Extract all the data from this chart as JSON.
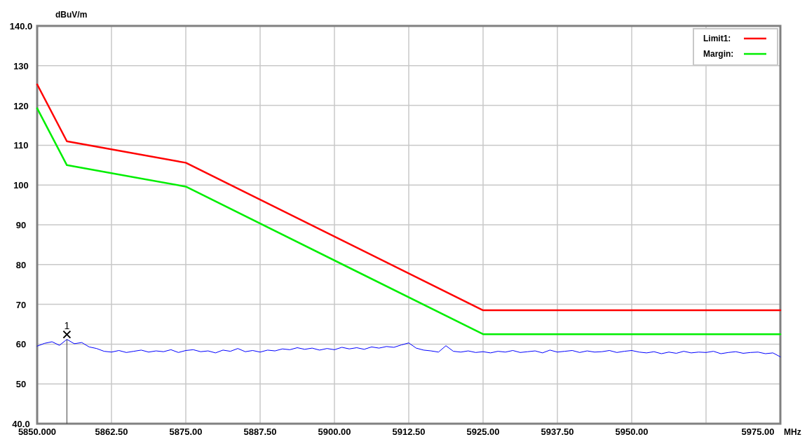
{
  "chart_data": {
    "type": "line",
    "xlabel": "MHz",
    "ylabel": "dBuV/m",
    "xlim": [
      5850,
      5975
    ],
    "xticks": [
      {
        "value": 5850,
        "label": "5850.000"
      },
      {
        "value": 5862.5,
        "label": "5862.50"
      },
      {
        "value": 5875,
        "label": "5875.00"
      },
      {
        "value": 5887.5,
        "label": "5887.50"
      },
      {
        "value": 5900,
        "label": "5900.00"
      },
      {
        "value": 5912.5,
        "label": "5912.50"
      },
      {
        "value": 5925,
        "label": "5925.00"
      },
      {
        "value": 5937.5,
        "label": "5937.50"
      },
      {
        "value": 5950,
        "label": "5950.00"
      },
      {
        "value": 5962.5,
        "label": null
      },
      {
        "value": 5975,
        "label": "5975.00"
      }
    ],
    "ylim": [
      40,
      140
    ],
    "yticks": [
      {
        "value": 40,
        "label": "40.0"
      },
      50,
      60,
      70,
      80,
      90,
      100,
      110,
      120,
      130,
      {
        "value": 140,
        "label": "140.0"
      }
    ],
    "grid": true,
    "legend": "top right",
    "marker": "none",
    "line_style": "solid",
    "series": [
      {
        "name": "Limit1:",
        "color": "#ff0000",
        "x": [
          5850,
          5855,
          5875,
          5925,
          5975
        ],
        "values": [
          125.3,
          111,
          105.6,
          68.5,
          68.5
        ]
      },
      {
        "name": "Margin:",
        "color": "#00ee00",
        "x": [
          5850,
          5855,
          5875,
          5925,
          5975
        ],
        "values": [
          119.3,
          105,
          99.6,
          62.5,
          62.5
        ]
      },
      {
        "color": "#0000ff",
        "x": [
          5850,
          5851.25,
          5852.5,
          5853.75,
          5855,
          5856.25,
          5857.5,
          5858.75,
          5860,
          5861.25,
          5862.5,
          5863.75,
          5865,
          5866.25,
          5867.5,
          5868.75,
          5870,
          5871.25,
          5872.5,
          5873.75,
          5875,
          5876.25,
          5877.5,
          5878.75,
          5880,
          5881.25,
          5882.5,
          5883.75,
          5885,
          5886.25,
          5887.5,
          5888.75,
          5890,
          5891.25,
          5892.5,
          5893.75,
          5895,
          5896.25,
          5897.5,
          5898.75,
          5900,
          5901.25,
          5902.5,
          5903.75,
          5905,
          5906.25,
          5907.5,
          5908.75,
          5910,
          5911.25,
          5912.5,
          5913.75,
          5915,
          5916.25,
          5917.5,
          5918.75,
          5920,
          5921.25,
          5922.5,
          5923.75,
          5925,
          5926.25,
          5927.5,
          5928.75,
          5930,
          5931.25,
          5932.5,
          5933.75,
          5935,
          5936.25,
          5937.5,
          5938.75,
          5940,
          5941.25,
          5942.5,
          5943.75,
          5945,
          5946.25,
          5947.5,
          5948.75,
          5950,
          5951.25,
          5952.5,
          5953.75,
          5955,
          5956.25,
          5957.5,
          5958.75,
          5960,
          5961.25,
          5962.5,
          5963.75,
          5965,
          5966.25,
          5967.5,
          5968.75,
          5970,
          5971.25,
          5972.5,
          5973.75,
          5975
        ],
        "values": [
          59.5,
          60.2,
          60.6,
          59.7,
          61.2,
          60.1,
          60.4,
          59.3,
          58.9,
          58.2,
          58.0,
          58.4,
          57.9,
          58.2,
          58.5,
          58.0,
          58.3,
          58.1,
          58.6,
          57.9,
          58.4,
          58.6,
          58.1,
          58.3,
          57.8,
          58.5,
          58.2,
          58.9,
          58.1,
          58.4,
          58.0,
          58.5,
          58.3,
          58.8,
          58.6,
          59.1,
          58.7,
          59.0,
          58.5,
          58.9,
          58.6,
          59.2,
          58.8,
          59.1,
          58.7,
          59.3,
          59.0,
          59.4,
          59.2,
          59.8,
          60.3,
          59.0,
          58.5,
          58.3,
          58.0,
          59.6,
          58.2,
          58.0,
          58.3,
          57.9,
          58.1,
          57.8,
          58.2,
          58.0,
          58.4,
          57.9,
          58.1,
          58.3,
          57.8,
          58.5,
          58.0,
          58.2,
          58.4,
          57.9,
          58.3,
          58.0,
          58.1,
          58.4,
          57.9,
          58.2,
          58.4,
          58.0,
          57.8,
          58.1,
          57.6,
          58.0,
          57.7,
          58.2,
          57.8,
          58.0,
          57.9,
          58.2,
          57.6,
          57.9,
          58.1,
          57.7,
          57.9,
          58.0,
          57.6,
          57.8,
          56.8
        ]
      }
    ],
    "annotations": [
      {
        "text": "1",
        "x": 5855,
        "y": 61.2
      }
    ]
  }
}
